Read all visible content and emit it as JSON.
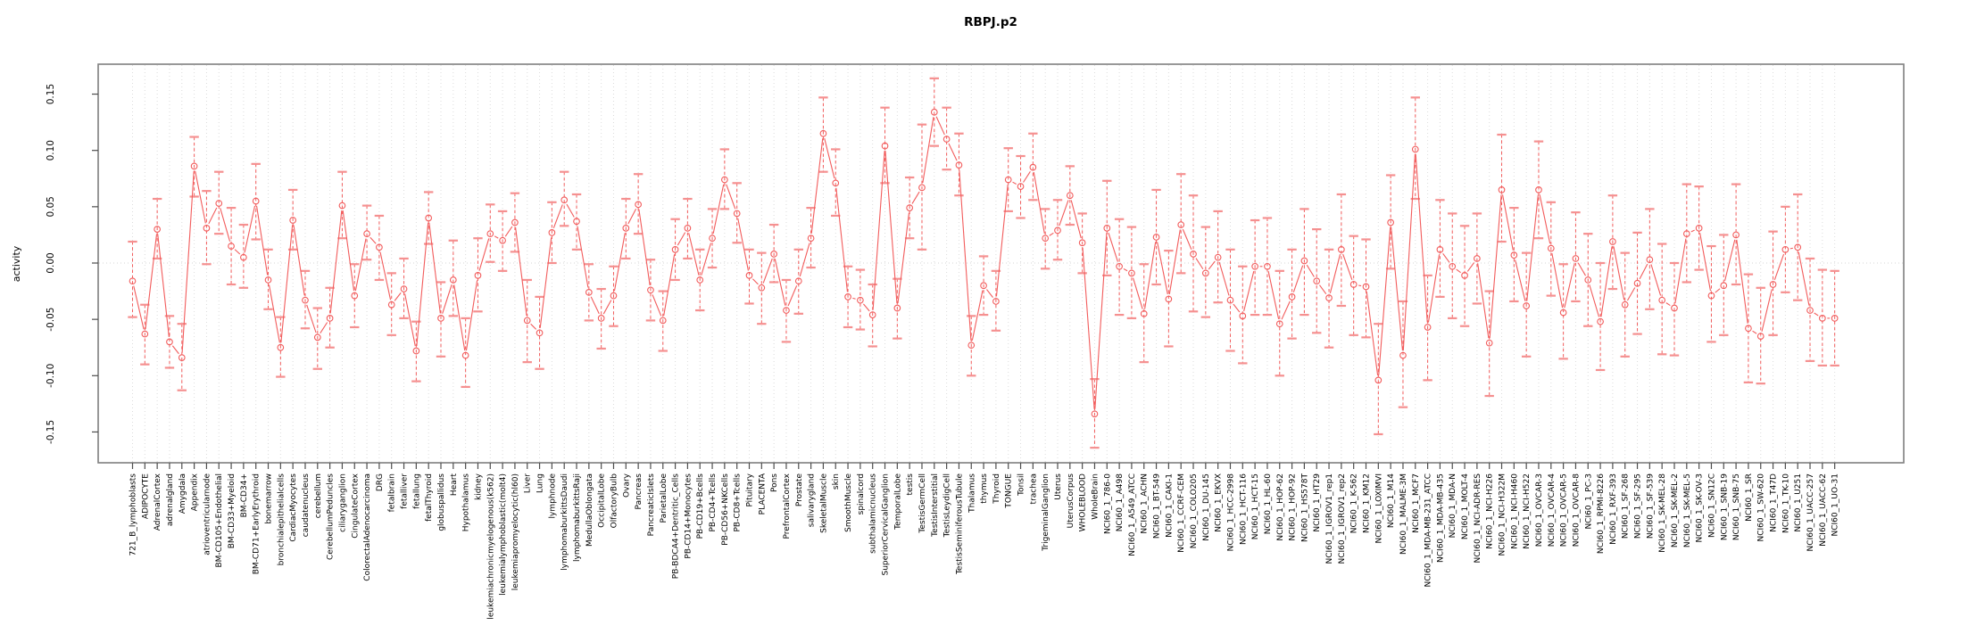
{
  "figure": {
    "background": "#ffffff"
  },
  "chart_data": {
    "type": "line",
    "title": "RBPJ.p2",
    "xlabel": "",
    "ylabel": "activity",
    "ylim": [
      -0.177,
      0.177
    ],
    "ytick_labels": [
      "-0.15",
      "-0.10",
      "-0.05",
      "0.00",
      "0.05",
      "0.10",
      "0.15"
    ],
    "grid": "vertical dotted line at every category; dotted horizontal line at 0.00",
    "legend": "none",
    "point_style": "open circles with dashed error bars and capped whiskers, connected by line segments",
    "categories": [
      "721_B_lymphoblasts",
      "ADIPOCYTE",
      "AdrenalCortex",
      "adrenalgland",
      "Amygdala",
      "Appendix",
      "atrioventricularnode",
      "BM-CD105+Endothelial",
      "BM-CD33+Myeloid",
      "BM-CD34+",
      "BM-CD71+EarlyErythroid",
      "bonemarrow",
      "bronchialepithelialcells",
      "CardiacMyocytes",
      "caudatenucleus",
      "cerebellum",
      "CerebellumPeduncles",
      "ciliaryganglion",
      "CingulateCortex",
      "ColorectalAdenocarcinoma",
      "DRG",
      "fetalbrain",
      "fetalliver",
      "fetallung",
      "fetalThyroid",
      "globuspallidus",
      "Heart",
      "Hypothalamus",
      "kidney",
      "leukemiachronicmyelogenous(k562)",
      "leukemialymphoblastic(molt4)",
      "leukemiapromyelocytic(hl60)",
      "Liver",
      "Lung",
      "lymphnode",
      "lymphomaburkittsDaudi",
      "lymphomaburkittsRaji",
      "MedullaOblongata",
      "OccipitalLobe",
      "OlfactoryBulb",
      "Ovary",
      "Pancreas",
      "PancreaticIslets",
      "ParietalLobe",
      "PB-BDCA4+Dentritic_Cells",
      "PB-CD14+Monocytes",
      "PB-CD19+Bcells",
      "PB-CD4+Tcells",
      "PB-CD56+NKCells",
      "PB-CD8+Tcells",
      "Pituitary",
      "PLACENTA",
      "Pons",
      "PrefrontalCortex",
      "Prostate",
      "salivarygland",
      "SkeletalMuscle",
      "skin",
      "SmoothMuscle",
      "spinalcord",
      "subthalamicnucleus",
      "SuperiorCervicalGanglion",
      "TemporalLobe",
      "testis",
      "TestisGermCell",
      "TestisInterstitial",
      "TestisLeydigCell",
      "TestisSeminiferousTubule",
      "Thalamus",
      "thymus",
      "Thyroid",
      "TONGUE",
      "Tonsil",
      "trachea",
      "TrigeminalGanglion",
      "Uterus",
      "UterusCorpus",
      "WHOLEBLOOD",
      "WholeBrain",
      "NCI60_1_786-0",
      "NCI60_1_A498",
      "NCI60_1_A549_ATCC",
      "NCI60_1_ACHN",
      "NCI60_1_BT-549",
      "NCI60_1_CAKI-1",
      "NCI60_1_CCRF-CEM",
      "NCI60_1_COLO205",
      "NCI60_1_DU-145",
      "NCI60_1_EKVX",
      "NCI60_1_HCC-2998",
      "NCI60_1_HCT-116",
      "NCI60_1_HCT-15",
      "NCI60_1_HL-60",
      "NCI60_1_HOP-62",
      "NCI60_1_HOP-92",
      "NCI60_1_HS578T",
      "NCI60_1_HT29",
      "NCI60_1_IGROV1_rep1",
      "NCI60_1_IGROV1_rep2",
      "NCI60_1_K-562",
      "NCI60_1_KM12",
      "NCI60_1_LOXIMVI",
      "NCI60_1_M14",
      "NCI60_1_MALME-3M",
      "NCI60_1_MCF7",
      "NCI60_1_MDA-MB-231_ATCC",
      "NCI60_1_MDA-MB-435",
      "NCI60_1_MDA-N",
      "NCI60_1_MOLT-4",
      "NCI60_1_NCI-ADR-RES",
      "NCI60_1_NCI-H226",
      "NCI60_1_NCI-H322M",
      "NCI60_1_NCI-H460",
      "NCI60_1_NCI-H522",
      "NCI60_1_OVCAR-3",
      "NCI60_1_OVCAR-4",
      "NCI60_1_OVCAR-5",
      "NCI60_1_OVCAR-8",
      "NCI60_1_PC-3",
      "NCI60_1_RPMI-8226",
      "NCI60_1_RXF-393",
      "NCI60_1_SF-268",
      "NCI60_1_SF-295",
      "NCI60_1_SF-539",
      "NCI60_1_SK-MEL-28",
      "NCI60_1_SK-MEL-2",
      "NCI60_1_SK-MEL-5",
      "NCI60_1_SK-OV-3",
      "NCI60_1_SN12C",
      "NCI60_1_SNB-19",
      "NCI60_1_SNB-75",
      "NCI60_1_SR",
      "NCI60_1_SW-620",
      "NCI60_1_T47D",
      "NCI60_1_TK-10",
      "NCI60_1_U251",
      "NCI60_1_UACC-257",
      "NCI60_1_UACC-62",
      "NCI60_1_UO-31"
    ],
    "series": [
      {
        "name": "activity",
        "values": [
          -0.016,
          -0.063,
          0.03,
          -0.07,
          -0.084,
          0.086,
          0.031,
          0.053,
          0.015,
          0.005,
          0.055,
          -0.015,
          -0.075,
          0.038,
          -0.033,
          -0.066,
          -0.049,
          0.051,
          -0.029,
          0.026,
          0.014,
          -0.037,
          -0.023,
          -0.078,
          0.04,
          -0.049,
          -0.015,
          -0.082,
          -0.011,
          0.026,
          0.02,
          0.036,
          -0.051,
          -0.062,
          0.027,
          0.056,
          0.037,
          -0.026,
          -0.049,
          -0.029,
          0.031,
          0.052,
          -0.024,
          -0.051,
          0.012,
          0.031,
          -0.015,
          0.022,
          0.074,
          0.044,
          -0.011,
          -0.022,
          0.008,
          -0.042,
          -0.016,
          0.022,
          0.115,
          0.071,
          -0.03,
          -0.033,
          -0.046,
          0.104,
          -0.04,
          0.049,
          0.067,
          0.134,
          0.11,
          0.087,
          -0.073,
          -0.02,
          -0.034,
          0.074,
          0.068,
          0.085,
          0.022,
          0.029,
          0.06,
          0.018,
          -0.134,
          0.031,
          -0.003,
          -0.009,
          -0.045,
          0.023,
          -0.032,
          0.034,
          0.008,
          -0.009,
          0.005,
          -0.033,
          -0.047,
          -0.003,
          -0.003,
          -0.054,
          -0.03,
          0.002,
          -0.016,
          -0.031,
          0.012,
          -0.019,
          -0.021,
          -0.104,
          0.036,
          -0.082,
          0.101,
          -0.057,
          0.012,
          -0.003,
          -0.011,
          0.004,
          -0.071,
          0.065,
          0.007,
          -0.038,
          0.065,
          0.013,
          -0.044,
          0.004,
          -0.015,
          -0.052,
          0.019,
          -0.037,
          -0.018,
          0.003,
          -0.033,
          -0.04,
          0.026,
          0.031,
          -0.029,
          -0.02,
          0.025,
          -0.058,
          -0.065,
          -0.019,
          0.012,
          0.014,
          -0.042,
          -0.049,
          -0.049
        ],
        "upper_whisker": [
          0.019,
          -0.037,
          0.057,
          -0.047,
          -0.054,
          0.112,
          0.064,
          0.081,
          0.049,
          0.034,
          0.088,
          0.012,
          -0.048,
          0.065,
          -0.007,
          -0.04,
          -0.022,
          0.081,
          -0.001,
          0.051,
          0.042,
          -0.009,
          0.004,
          -0.052,
          0.063,
          -0.017,
          0.02,
          -0.049,
          0.022,
          0.052,
          0.046,
          0.062,
          -0.015,
          -0.03,
          0.054,
          0.081,
          0.061,
          -0.001,
          -0.023,
          -0.003,
          0.057,
          0.079,
          0.003,
          -0.025,
          0.039,
          0.057,
          0.012,
          0.048,
          0.101,
          0.071,
          0.012,
          0.009,
          0.034,
          -0.015,
          0.012,
          0.049,
          0.147,
          0.101,
          -0.003,
          -0.006,
          -0.019,
          0.138,
          -0.014,
          0.076,
          0.123,
          0.164,
          0.138,
          0.115,
          -0.047,
          0.006,
          -0.007,
          0.102,
          0.095,
          0.115,
          0.048,
          0.056,
          0.086,
          0.044,
          -0.103,
          0.073,
          0.039,
          0.032,
          -0.001,
          0.065,
          0.011,
          0.079,
          0.06,
          0.032,
          0.046,
          0.012,
          -0.003,
          0.038,
          0.04,
          -0.007,
          0.012,
          0.048,
          0.03,
          0.012,
          0.061,
          0.024,
          0.021,
          -0.054,
          0.078,
          -0.034,
          0.147,
          -0.011,
          0.056,
          0.044,
          0.033,
          0.044,
          -0.025,
          0.114,
          0.049,
          0.009,
          0.108,
          0.054,
          -0.001,
          0.045,
          0.026,
          0.0,
          0.06,
          0.009,
          0.027,
          0.048,
          0.017,
          0.0,
          0.07,
          0.068,
          0.015,
          0.025,
          0.07,
          -0.01,
          -0.022,
          0.028,
          0.05,
          0.061,
          0.004,
          -0.006,
          -0.007
        ],
        "lower_whisker": [
          -0.048,
          -0.09,
          0.004,
          -0.093,
          -0.113,
          0.059,
          -0.001,
          0.026,
          -0.019,
          -0.022,
          0.021,
          -0.041,
          -0.101,
          0.012,
          -0.058,
          -0.094,
          -0.075,
          0.022,
          -0.057,
          0.003,
          -0.015,
          -0.064,
          -0.049,
          -0.105,
          0.017,
          -0.083,
          -0.047,
          -0.11,
          -0.043,
          0.001,
          -0.007,
          0.01,
          -0.088,
          -0.094,
          0.0,
          0.033,
          0.012,
          -0.051,
          -0.076,
          -0.056,
          0.004,
          0.026,
          -0.051,
          -0.078,
          -0.015,
          0.004,
          -0.042,
          -0.004,
          0.048,
          0.018,
          -0.036,
          -0.054,
          -0.017,
          -0.07,
          -0.045,
          -0.004,
          0.081,
          0.042,
          -0.057,
          -0.059,
          -0.074,
          0.071,
          -0.067,
          0.022,
          0.012,
          0.104,
          0.083,
          0.06,
          -0.1,
          -0.046,
          -0.06,
          0.046,
          0.04,
          0.056,
          -0.005,
          0.003,
          0.034,
          -0.009,
          -0.164,
          -0.011,
          -0.046,
          -0.049,
          -0.088,
          -0.019,
          -0.074,
          -0.009,
          -0.043,
          -0.048,
          -0.035,
          -0.078,
          -0.089,
          -0.046,
          -0.046,
          -0.1,
          -0.067,
          -0.046,
          -0.062,
          -0.075,
          -0.038,
          -0.064,
          -0.066,
          -0.152,
          -0.005,
          -0.128,
          0.057,
          -0.104,
          -0.03,
          -0.049,
          -0.056,
          -0.036,
          -0.118,
          0.019,
          -0.034,
          -0.083,
          0.022,
          -0.029,
          -0.085,
          -0.034,
          -0.056,
          -0.095,
          -0.023,
          -0.083,
          -0.063,
          -0.041,
          -0.081,
          -0.082,
          -0.017,
          -0.006,
          -0.07,
          -0.064,
          -0.019,
          -0.106,
          -0.107,
          -0.064,
          -0.026,
          -0.033,
          -0.087,
          -0.091,
          -0.091
        ]
      }
    ]
  },
  "colors": {
    "point_and_line": "#f25c5c",
    "whisker_cap": "#f59090",
    "error_bar_line": "#f25c5c",
    "gridline": "#dcdcdc",
    "zero_line": "#d4d4d4",
    "plot_border": "#7f7f7f",
    "tick": "#4d4d4d",
    "text": "#000000",
    "background": "#ffffff"
  }
}
